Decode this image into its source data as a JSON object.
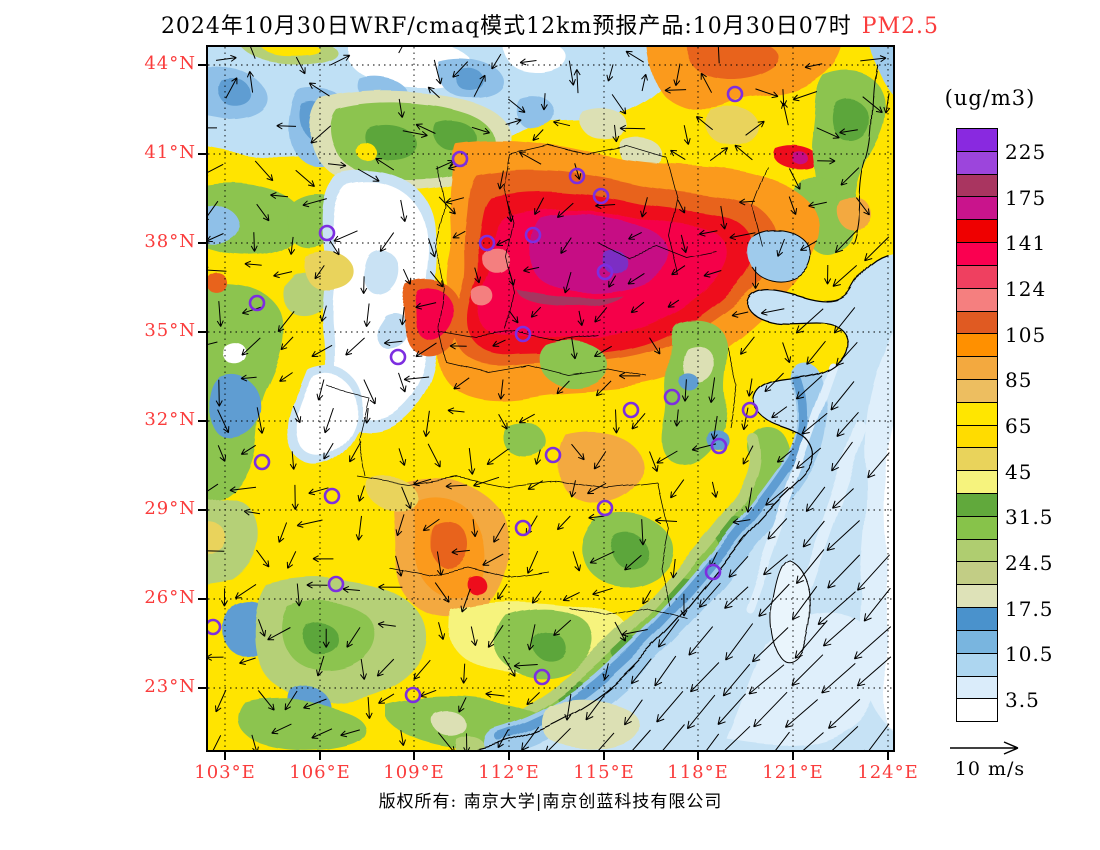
{
  "title": {
    "text": "2024年10月30日WRF/cmaq模式12km预报产品:10月30日07时",
    "pollutant": "PM2.5"
  },
  "colors": {
    "label_red": "#FA3C3C",
    "marker_purple": "#7D2EE0",
    "text_black": "#000000"
  },
  "colorbar": {
    "unit_label": "(ug/m3)",
    "tick_labels": [
      "225",
      "175",
      "141",
      "124",
      "105",
      "85",
      "65",
      "45",
      "31.5",
      "24.5",
      "17.5",
      "10.5",
      "3.5"
    ],
    "cell_colors": [
      "#8929E0",
      "#9C45DC",
      "#A93560",
      "#C9148C",
      "#EF0000",
      "#FA0050",
      "#EF4060",
      "#F57F7F",
      "#E05A22",
      "#FF9000",
      "#F3A93F",
      "#EDBE60",
      "#FFE600",
      "#FFDC00",
      "#E9D35B",
      "#F6F37D",
      "#61A93C",
      "#87C34A",
      "#AFCD70",
      "#C2CD85",
      "#DEE2B8",
      "#4A92CC",
      "#79B5DF",
      "#ADD6F0",
      "#DAECFA",
      "#FFFFFF"
    ]
  },
  "axes": {
    "x_tick_labels": [
      "103°E",
      "106°E",
      "109°E",
      "112°E",
      "115°E",
      "118°E",
      "121°E",
      "124°E"
    ],
    "y_tick_labels": [
      "44°N",
      "41°N",
      "38°N",
      "35°N",
      "32°N",
      "29°N",
      "26°N",
      "23°N"
    ]
  },
  "wind_legend": {
    "label": "10 m/s"
  },
  "footer": {
    "copyright_text": "版权所有: 南京大学|南京创蓝科技有限公司"
  },
  "map": {
    "cities": [
      [
        527,
        47
      ],
      [
        369,
        129
      ],
      [
        393,
        149
      ],
      [
        252,
        112
      ],
      [
        325,
        188
      ],
      [
        279,
        196
      ],
      [
        397,
        225
      ],
      [
        315,
        287
      ],
      [
        119,
        186
      ],
      [
        49,
        256
      ],
      [
        190,
        310
      ],
      [
        542,
        363
      ],
      [
        511,
        399
      ],
      [
        464,
        350
      ],
      [
        423,
        363
      ],
      [
        345,
        408
      ],
      [
        397,
        461
      ],
      [
        505,
        525
      ],
      [
        54,
        415
      ],
      [
        124,
        449
      ],
      [
        128,
        537
      ],
      [
        5,
        580
      ],
      [
        205,
        648
      ],
      [
        315,
        481
      ],
      [
        334,
        630
      ]
    ]
  }
}
